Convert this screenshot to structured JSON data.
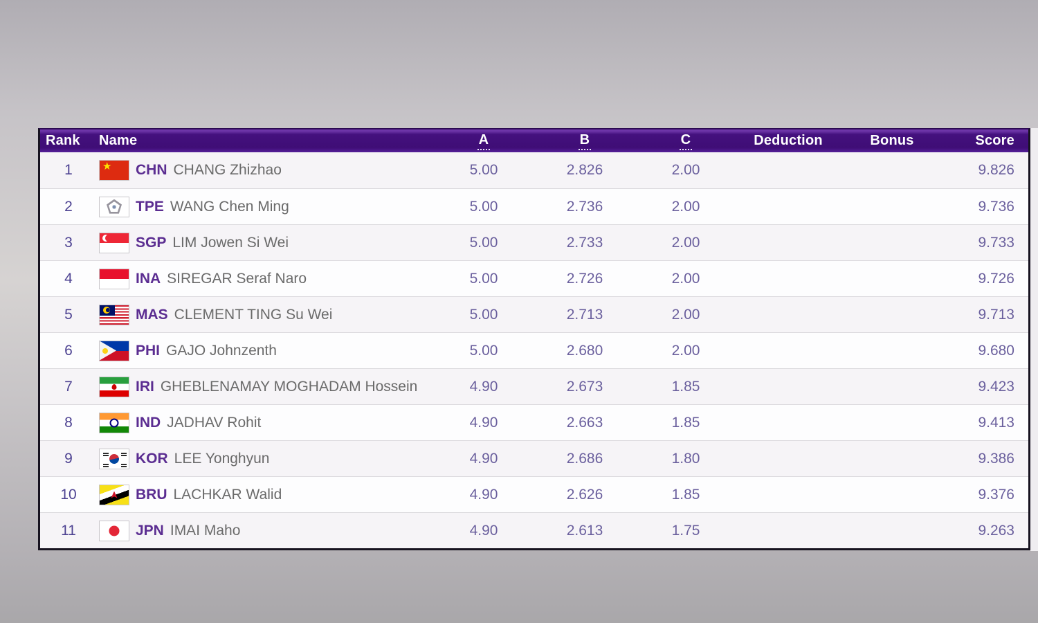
{
  "colors": {
    "header_background": "#42107B",
    "header_text": "#FFFFFF",
    "country_code_text": "#5B2D91",
    "rank_text": "#4C4191",
    "value_text": "#6A5F9D",
    "athlete_name_text": "#6A6A6A",
    "page_background": "#C6C3C7"
  },
  "table": {
    "columns": [
      {
        "key": "rank",
        "label": "Rank",
        "underlined": false,
        "align": "left-rank"
      },
      {
        "key": "name",
        "label": "Name",
        "underlined": false,
        "align": "name"
      },
      {
        "key": "a",
        "label": "A",
        "underlined": true,
        "align": "center"
      },
      {
        "key": "b",
        "label": "B",
        "underlined": true,
        "align": "center"
      },
      {
        "key": "c",
        "label": "C",
        "underlined": true,
        "align": "center"
      },
      {
        "key": "deduction",
        "label": "Deduction",
        "underlined": false,
        "align": "center"
      },
      {
        "key": "bonus",
        "label": "Bonus",
        "underlined": false,
        "align": "center"
      },
      {
        "key": "score",
        "label": "Score",
        "underlined": false,
        "align": "right"
      }
    ],
    "rows": [
      {
        "rank": "1",
        "country_code": "CHN",
        "flag_icon": "flag-chn-icon",
        "name": "CHANG Zhizhao",
        "a": "5.00",
        "b": "2.826",
        "c": "2.00",
        "deduction": "",
        "bonus": "",
        "score": "9.826"
      },
      {
        "rank": "2",
        "country_code": "TPE",
        "flag_icon": "flag-tpe-icon",
        "name": "WANG Chen Ming",
        "a": "5.00",
        "b": "2.736",
        "c": "2.00",
        "deduction": "",
        "bonus": "",
        "score": "9.736"
      },
      {
        "rank": "3",
        "country_code": "SGP",
        "flag_icon": "flag-sgp-icon",
        "name": "LIM Jowen Si Wei",
        "a": "5.00",
        "b": "2.733",
        "c": "2.00",
        "deduction": "",
        "bonus": "",
        "score": "9.733"
      },
      {
        "rank": "4",
        "country_code": "INA",
        "flag_icon": "flag-ina-icon",
        "name": "SIREGAR Seraf Naro",
        "a": "5.00",
        "b": "2.726",
        "c": "2.00",
        "deduction": "",
        "bonus": "",
        "score": "9.726"
      },
      {
        "rank": "5",
        "country_code": "MAS",
        "flag_icon": "flag-mas-icon",
        "name": "CLEMENT TING Su Wei",
        "a": "5.00",
        "b": "2.713",
        "c": "2.00",
        "deduction": "",
        "bonus": "",
        "score": "9.713"
      },
      {
        "rank": "6",
        "country_code": "PHI",
        "flag_icon": "flag-phi-icon",
        "name": "GAJO Johnzenth",
        "a": "5.00",
        "b": "2.680",
        "c": "2.00",
        "deduction": "",
        "bonus": "",
        "score": "9.680"
      },
      {
        "rank": "7",
        "country_code": "IRI",
        "flag_icon": "flag-iri-icon",
        "name": "GHEBLENAMAY MOGHADAM Hossein",
        "a": "4.90",
        "b": "2.673",
        "c": "1.85",
        "deduction": "",
        "bonus": "",
        "score": "9.423"
      },
      {
        "rank": "8",
        "country_code": "IND",
        "flag_icon": "flag-ind-icon",
        "name": "JADHAV Rohit",
        "a": "4.90",
        "b": "2.663",
        "c": "1.85",
        "deduction": "",
        "bonus": "",
        "score": "9.413"
      },
      {
        "rank": "9",
        "country_code": "KOR",
        "flag_icon": "flag-kor-icon",
        "name": "LEE Yonghyun",
        "a": "4.90",
        "b": "2.686",
        "c": "1.80",
        "deduction": "",
        "bonus": "",
        "score": "9.386"
      },
      {
        "rank": "10",
        "country_code": "BRU",
        "flag_icon": "flag-bru-icon",
        "name": "LACHKAR Walid",
        "a": "4.90",
        "b": "2.626",
        "c": "1.85",
        "deduction": "",
        "bonus": "",
        "score": "9.376"
      },
      {
        "rank": "11",
        "country_code": "JPN",
        "flag_icon": "flag-jpn-icon",
        "name": "IMAI Maho",
        "a": "4.90",
        "b": "2.613",
        "c": "1.75",
        "deduction": "",
        "bonus": "",
        "score": "9.263"
      }
    ]
  }
}
